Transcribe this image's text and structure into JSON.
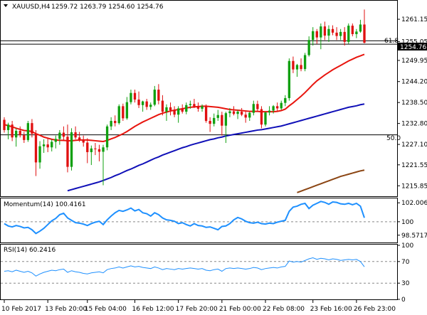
{
  "chart_data": [
    {
      "type": "candlestick",
      "symbol": "XAUUSD,H4",
      "ohlc_label": "1259.72 1263.79 1254.60 1254.76",
      "current_price": 1254.76,
      "current_price_label": "1254.76",
      "ylim": [
        1213.0,
        1266.0
      ],
      "y_ticks": [
        1261.15,
        1255.05,
        1249.95,
        1244.2,
        1238.5,
        1232.8,
        1227.1,
        1221.55,
        1215.85
      ],
      "y_tick_labels": [
        "1261.15",
        "1255.05",
        "1249.95",
        "1244.20",
        "1238.50",
        "1232.80",
        "1227.10",
        "1221.55",
        "1215.85"
      ],
      "x_tick_labels": [
        "10 Feb 2017",
        "13 Feb 20:00",
        "15 Feb 04:00",
        "16 Feb 12:00",
        "17 Feb 20:00",
        "21 Feb 00:00",
        "22 Feb 08:00",
        "23 Feb 16:00",
        "26 Feb 23:00"
      ],
      "fibo_levels": [
        {
          "label": "61.8",
          "price": 1255.3
        },
        {
          "label": "50.0",
          "price": 1229.7
        }
      ],
      "candles": [
        [
          1233.8,
          1234.5,
          1230.3,
          1231.0
        ],
        [
          1231.0,
          1233.0,
          1228.5,
          1232.5
        ],
        [
          1232.5,
          1233.5,
          1228.0,
          1229.0
        ],
        [
          1229.0,
          1231.5,
          1226.5,
          1230.8
        ],
        [
          1230.8,
          1232.0,
          1229.0,
          1229.6
        ],
        [
          1229.6,
          1230.5,
          1227.5,
          1228.3
        ],
        [
          1228.3,
          1233.5,
          1227.8,
          1232.9
        ],
        [
          1232.9,
          1234.0,
          1229.0,
          1230.0
        ],
        [
          1230.0,
          1231.0,
          1218.5,
          1222.2
        ],
        [
          1222.2,
          1228.0,
          1220.5,
          1226.6
        ],
        [
          1226.6,
          1228.5,
          1224.8,
          1227.1
        ],
        [
          1227.1,
          1228.8,
          1225.0,
          1226.3
        ],
        [
          1226.3,
          1228.5,
          1225.2,
          1227.8
        ],
        [
          1227.8,
          1229.5,
          1226.0,
          1228.6
        ],
        [
          1228.6,
          1231.0,
          1227.0,
          1230.3
        ],
        [
          1230.3,
          1232.0,
          1228.0,
          1229.2
        ],
        [
          1229.2,
          1232.5,
          1219.5,
          1221.0
        ],
        [
          1221.0,
          1231.5,
          1220.0,
          1230.4
        ],
        [
          1230.4,
          1232.0,
          1228.5,
          1229.0
        ],
        [
          1229.0,
          1230.5,
          1227.8,
          1228.3
        ],
        [
          1228.3,
          1229.5,
          1226.5,
          1227.6
        ],
        [
          1227.6,
          1228.8,
          1222.0,
          1225.0
        ],
        [
          1225.0,
          1226.8,
          1221.5,
          1226.0
        ],
        [
          1226.0,
          1227.5,
          1224.2,
          1225.8
        ],
        [
          1225.8,
          1227.0,
          1222.5,
          1225.1
        ],
        [
          1225.1,
          1227.0,
          1216.0,
          1226.3
        ],
        [
          1226.3,
          1232.5,
          1225.5,
          1232.0
        ],
        [
          1232.0,
          1234.5,
          1231.0,
          1233.5
        ],
        [
          1233.5,
          1235.0,
          1232.0,
          1232.9
        ],
        [
          1232.9,
          1238.0,
          1232.5,
          1237.5
        ],
        [
          1237.5,
          1238.2,
          1233.5,
          1234.2
        ],
        [
          1234.2,
          1240.0,
          1233.8,
          1238.6
        ],
        [
          1238.6,
          1242.0,
          1238.0,
          1241.1
        ],
        [
          1241.1,
          1242.0,
          1238.5,
          1239.3
        ],
        [
          1239.3,
          1241.5,
          1237.0,
          1237.8
        ],
        [
          1237.8,
          1239.0,
          1236.0,
          1238.8
        ],
        [
          1238.8,
          1239.5,
          1236.5,
          1237.3
        ],
        [
          1237.3,
          1238.5,
          1236.5,
          1237.9
        ],
        [
          1237.9,
          1243.0,
          1237.5,
          1242.0
        ],
        [
          1242.0,
          1243.5,
          1238.0,
          1239.0
        ],
        [
          1239.0,
          1240.5,
          1235.0,
          1236.0
        ],
        [
          1236.0,
          1238.0,
          1233.5,
          1237.2
        ],
        [
          1237.2,
          1238.5,
          1235.0,
          1236.4
        ],
        [
          1236.4,
          1237.5,
          1234.5,
          1235.2
        ],
        [
          1235.2,
          1237.5,
          1233.0,
          1236.9
        ],
        [
          1236.9,
          1238.0,
          1235.5,
          1236.0
        ],
        [
          1236.0,
          1238.5,
          1235.3,
          1237.8
        ],
        [
          1237.8,
          1239.0,
          1236.8,
          1238.1
        ],
        [
          1238.1,
          1239.5,
          1237.0,
          1237.4
        ],
        [
          1237.4,
          1238.5,
          1236.0,
          1236.8
        ],
        [
          1236.8,
          1238.0,
          1236.0,
          1237.5
        ],
        [
          1237.5,
          1238.0,
          1233.0,
          1233.5
        ],
        [
          1233.5,
          1234.5,
          1230.5,
          1232.7
        ],
        [
          1232.7,
          1235.5,
          1232.0,
          1234.3
        ],
        [
          1234.3,
          1236.5,
          1233.5,
          1235.1
        ],
        [
          1235.1,
          1236.0,
          1229.5,
          1232.2
        ],
        [
          1232.2,
          1236.0,
          1227.5,
          1235.6
        ],
        [
          1235.6,
          1237.0,
          1234.5,
          1236.1
        ],
        [
          1236.1,
          1237.5,
          1235.0,
          1235.4
        ],
        [
          1235.4,
          1236.5,
          1234.0,
          1236.0
        ],
        [
          1236.0,
          1237.0,
          1234.8,
          1235.2
        ],
        [
          1235.2,
          1236.0,
          1233.0,
          1234.4
        ],
        [
          1234.4,
          1236.0,
          1233.5,
          1235.7
        ],
        [
          1235.7,
          1239.0,
          1235.0,
          1238.1
        ],
        [
          1238.1,
          1239.0,
          1236.0,
          1236.7
        ],
        [
          1236.7,
          1237.5,
          1231.5,
          1232.5
        ],
        [
          1232.5,
          1236.0,
          1232.0,
          1235.8
        ],
        [
          1235.8,
          1237.5,
          1235.0,
          1236.3
        ],
        [
          1236.3,
          1237.8,
          1235.5,
          1237.5
        ],
        [
          1237.5,
          1238.5,
          1236.0,
          1236.9
        ],
        [
          1236.9,
          1239.0,
          1236.5,
          1238.4
        ],
        [
          1238.4,
          1240.5,
          1237.5,
          1239.7
        ],
        [
          1239.7,
          1250.5,
          1239.0,
          1249.8
        ],
        [
          1249.8,
          1251.0,
          1246.5,
          1247.5
        ],
        [
          1247.5,
          1249.0,
          1245.5,
          1248.7
        ],
        [
          1248.7,
          1250.5,
          1247.0,
          1247.6
        ],
        [
          1247.6,
          1252.0,
          1247.0,
          1251.4
        ],
        [
          1251.4,
          1256.5,
          1251.0,
          1255.5
        ],
        [
          1255.5,
          1259.0,
          1254.0,
          1257.9
        ],
        [
          1257.9,
          1258.5,
          1254.5,
          1256.2
        ],
        [
          1256.2,
          1260.0,
          1253.0,
          1259.2
        ],
        [
          1259.2,
          1260.5,
          1255.5,
          1256.7
        ],
        [
          1256.7,
          1259.5,
          1255.0,
          1258.5
        ],
        [
          1258.5,
          1259.5,
          1256.8,
          1257.5
        ],
        [
          1257.5,
          1259.0,
          1255.5,
          1256.6
        ],
        [
          1256.6,
          1258.5,
          1255.5,
          1257.7
        ],
        [
          1257.7,
          1259.0,
          1254.0,
          1255.0
        ],
        [
          1255.0,
          1260.0,
          1254.5,
          1259.4
        ],
        [
          1259.4,
          1260.0,
          1256.5,
          1257.1
        ],
        [
          1257.1,
          1258.5,
          1256.0,
          1257.8
        ],
        [
          1257.8,
          1261.0,
          1257.5,
          1259.72
        ],
        [
          1259.72,
          1263.79,
          1254.6,
          1254.76
        ]
      ],
      "series": [
        {
          "name": "",
          "color": "#e8150e",
          "values": [
            1232.5,
            1232.2,
            1231.9,
            1231.5,
            1231.2,
            1230.9,
            1230.8,
            1230.6,
            1230.0,
            1229.6,
            1229.1,
            1228.8,
            1228.5,
            1228.3,
            1228.2,
            1228.2,
            1228.1,
            1228.1,
            1228.2,
            1228.3,
            1228.3,
            1228.3,
            1228.2,
            1228.1,
            1228.0,
            1227.9,
            1228.2,
            1228.6,
            1229.0,
            1229.5,
            1230.0,
            1230.6,
            1231.3,
            1232.0,
            1232.6,
            1233.2,
            1233.7,
            1234.2,
            1234.7,
            1235.2,
            1235.6,
            1235.9,
            1236.2,
            1236.4,
            1236.6,
            1236.8,
            1237.0,
            1237.2,
            1237.3,
            1237.4,
            1237.5,
            1237.5,
            1237.4,
            1237.3,
            1237.2,
            1237.0,
            1236.8,
            1236.6,
            1236.5,
            1236.4,
            1236.3,
            1236.2,
            1236.1,
            1236.1,
            1236.1,
            1236.0,
            1236.0,
            1236.0,
            1236.0,
            1236.1,
            1236.3,
            1236.7,
            1237.6,
            1238.4,
            1239.3,
            1240.2,
            1241.2,
            1242.3,
            1243.4,
            1244.4,
            1245.2,
            1246.0,
            1246.7,
            1247.4,
            1248.0,
            1248.6,
            1249.2,
            1249.8,
            1250.3,
            1250.8,
            1251.2,
            1251.6
          ]
        },
        {
          "name": "",
          "color": "#1010b8",
          "values": [
            null,
            null,
            null,
            null,
            null,
            null,
            null,
            null,
            null,
            null,
            null,
            null,
            null,
            null,
            null,
            null,
            1214.5,
            1214.8,
            1215.1,
            1215.4,
            1215.7,
            1216.0,
            1216.3,
            1216.6,
            1216.9,
            1217.3,
            1217.7,
            1218.1,
            1218.6,
            1219.0,
            1219.5,
            1220.0,
            1220.4,
            1220.9,
            1221.4,
            1221.8,
            1222.3,
            1222.8,
            1223.3,
            1223.7,
            1224.2,
            1224.6,
            1225.0,
            1225.4,
            1225.8,
            1226.2,
            1226.5,
            1226.9,
            1227.2,
            1227.5,
            1227.8,
            1228.1,
            1228.4,
            1228.6,
            1228.9,
            1229.1,
            1229.4,
            1229.6,
            1229.8,
            1230.0,
            1230.2,
            1230.4,
            1230.6,
            1230.8,
            1231.0,
            1231.1,
            1231.3,
            1231.5,
            1231.7,
            1231.9,
            1232.1,
            1232.4,
            1232.7,
            1233.0,
            1233.3,
            1233.6,
            1233.9,
            1234.2,
            1234.5,
            1234.8,
            1235.1,
            1235.4,
            1235.7,
            1236.0,
            1236.3,
            1236.6,
            1236.9,
            1237.2,
            1237.4,
            1237.6,
            1237.9,
            1238.1
          ]
        },
        {
          "name": "",
          "color": "#8b4513",
          "values": [
            null,
            null,
            null,
            null,
            null,
            null,
            null,
            null,
            null,
            null,
            null,
            null,
            null,
            null,
            null,
            null,
            null,
            null,
            null,
            null,
            null,
            null,
            null,
            null,
            null,
            null,
            null,
            null,
            null,
            null,
            null,
            null,
            null,
            null,
            null,
            null,
            null,
            null,
            null,
            null,
            null,
            null,
            null,
            null,
            null,
            null,
            null,
            null,
            null,
            null,
            null,
            null,
            null,
            null,
            null,
            null,
            null,
            null,
            null,
            null,
            null,
            null,
            null,
            null,
            null,
            null,
            null,
            null,
            null,
            null,
            null,
            null,
            null,
            null,
            1214.0,
            1214.4,
            1214.8,
            1215.2,
            1215.6,
            1216.0,
            1216.4,
            1216.8,
            1217.2,
            1217.6,
            1218.0,
            1218.4,
            1218.7,
            1219.0,
            1219.3,
            1219.6,
            1219.9,
            1220.1
          ]
        }
      ]
    },
    {
      "type": "line",
      "label": "Momentum(14) 100.4161",
      "ylim": [
        97.8,
        102.4
      ],
      "y_ticks": [
        102.0065,
        100.0,
        98.5717
      ],
      "y_tick_labels": [
        "102.0065",
        "100",
        "98.5717"
      ],
      "series": [
        {
          "name": "",
          "color": "#1e90ff",
          "values": [
            99.8,
            99.55,
            99.45,
            99.6,
            99.5,
            99.35,
            99.4,
            99.15,
            98.75,
            99.0,
            99.3,
            99.7,
            100.1,
            100.35,
            100.75,
            100.9,
            100.4,
            100.15,
            99.9,
            99.85,
            99.75,
            99.6,
            99.8,
            99.95,
            100.05,
            99.7,
            100.2,
            100.6,
            100.95,
            101.2,
            101.1,
            101.25,
            101.45,
            101.15,
            101.3,
            100.95,
            100.85,
            100.6,
            100.95,
            100.75,
            100.4,
            100.2,
            100.15,
            100.05,
            99.8,
            99.9,
            99.7,
            99.55,
            99.8,
            99.6,
            99.55,
            99.4,
            99.45,
            99.3,
            99.15,
            99.5,
            99.55,
            99.8,
            100.2,
            100.45,
            100.3,
            100.05,
            99.9,
            99.85,
            99.95,
            99.8,
            99.75,
            99.85,
            99.8,
            99.95,
            100.05,
            100.15,
            101.1,
            101.55,
            101.65,
            101.85,
            101.95,
            101.4,
            101.75,
            101.95,
            102.15,
            102.05,
            101.85,
            102.1,
            102.05,
            101.9,
            101.85,
            101.95,
            101.8,
            101.95,
            101.65,
            100.42
          ]
        }
      ]
    },
    {
      "type": "line",
      "label": "RSI(14) 60.2416",
      "ylim": [
        0,
        100
      ],
      "y_ticks": [
        100,
        70,
        30,
        0
      ],
      "y_tick_labels": [
        "100",
        "70",
        "30",
        "0"
      ],
      "series": [
        {
          "name": "",
          "color": "#1e90ff",
          "values": [
            52,
            53,
            51,
            54,
            52,
            50,
            52,
            49,
            43,
            47,
            50,
            52,
            54,
            53,
            55,
            56,
            50,
            53,
            51,
            50,
            48,
            47,
            49,
            50,
            51,
            49,
            55,
            57,
            58,
            60,
            58,
            60,
            62,
            60,
            61,
            59,
            58,
            57,
            60,
            58,
            55,
            57,
            56,
            55,
            57,
            56,
            57,
            58,
            57,
            56,
            57,
            54,
            53,
            55,
            56,
            52,
            57,
            58,
            57,
            58,
            57,
            56,
            57,
            59,
            58,
            55,
            57,
            58,
            59,
            58,
            60,
            61,
            71,
            69,
            70,
            69,
            72,
            75,
            77,
            74,
            76,
            75,
            73,
            75,
            74,
            72,
            73,
            74,
            73,
            74,
            70,
            60.2416
          ]
        }
      ]
    }
  ]
}
